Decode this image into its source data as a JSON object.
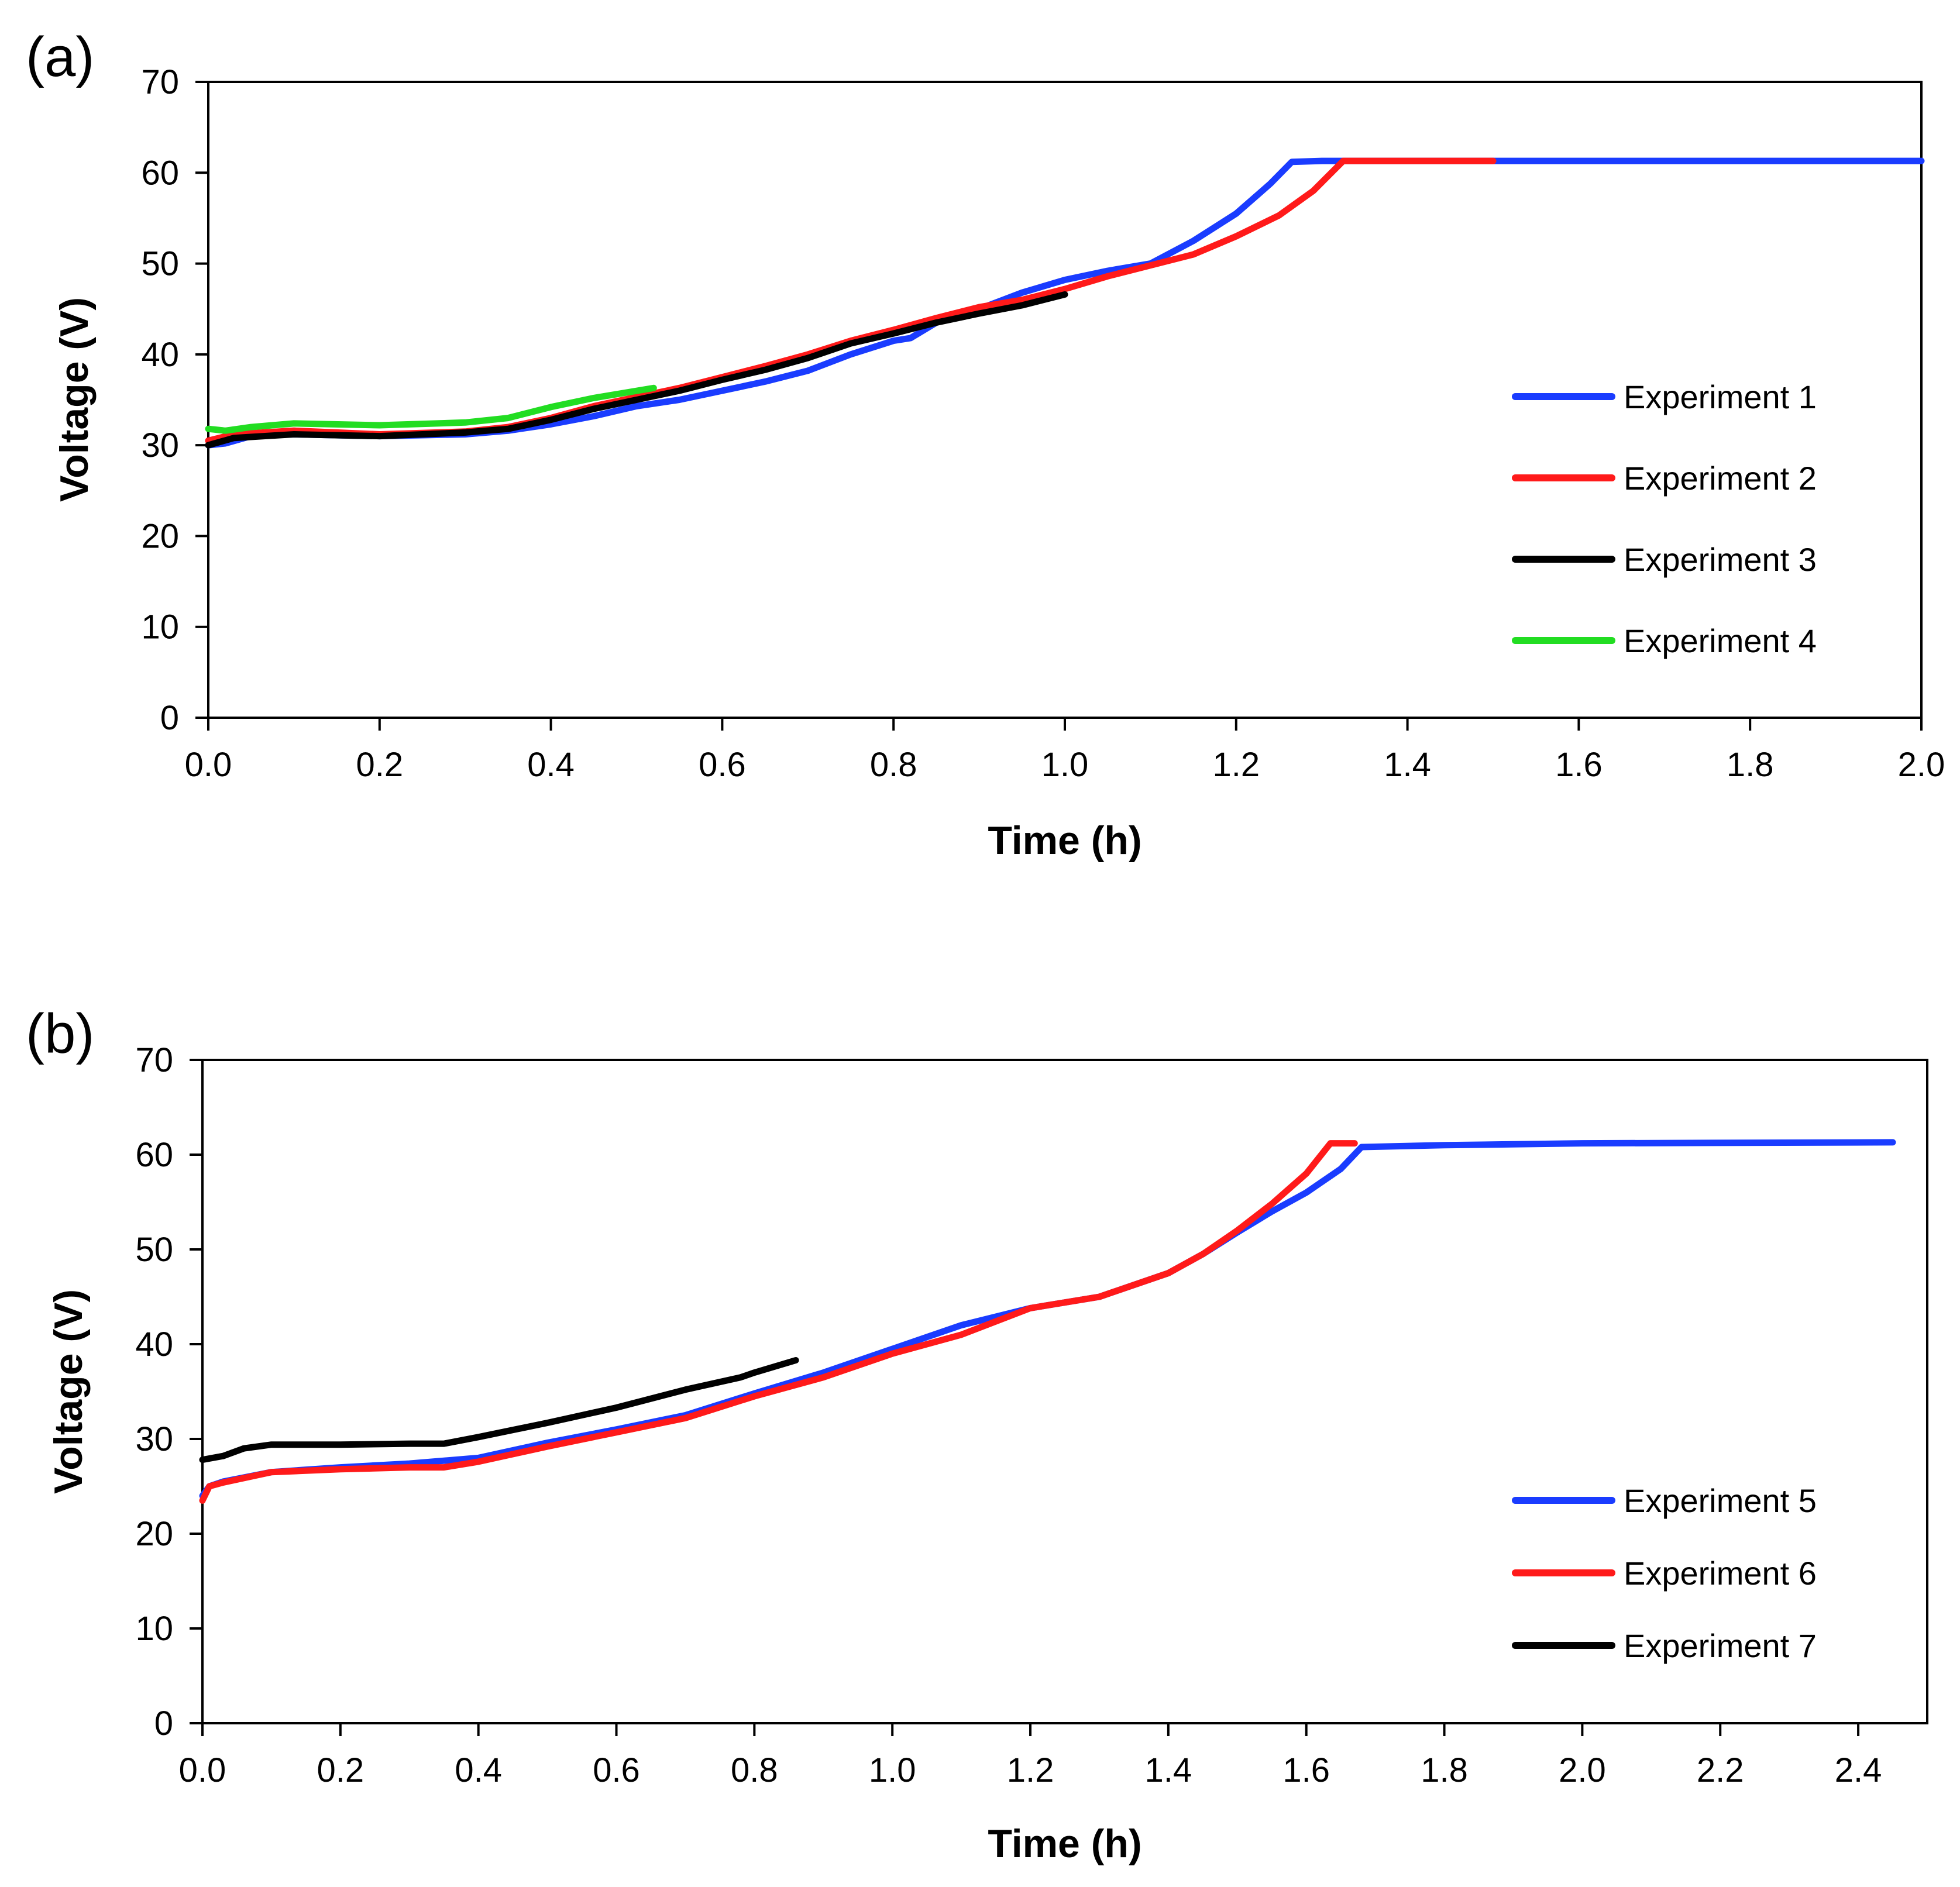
{
  "chart_data": [
    {
      "type": "line",
      "panel_label": "(a)",
      "xlabel": "Time (h)",
      "ylabel": "Voltage (V)",
      "xlim": [
        0,
        2.0
      ],
      "ylim": [
        0,
        70
      ],
      "x_ticks": [
        0.0,
        0.2,
        0.4,
        0.6,
        0.8,
        1.0,
        1.2,
        1.4,
        1.6,
        1.8,
        2.0
      ],
      "x_tick_labels": [
        "0.0",
        "0.2",
        "0.4",
        "0.6",
        "0.8",
        "1.0",
        "1.2",
        "1.4",
        "1.6",
        "1.8",
        "2.0"
      ],
      "y_ticks": [
        0,
        10,
        20,
        30,
        40,
        50,
        60,
        70
      ],
      "y_tick_labels": [
        "0",
        "10",
        "20",
        "30",
        "40",
        "50",
        "60",
        "70"
      ],
      "grid": false,
      "legend_position": "right",
      "series": [
        {
          "name": "Experiment 1",
          "color": "#1a3cff",
          "x": [
            0.0,
            0.02,
            0.05,
            0.1,
            0.2,
            0.3,
            0.35,
            0.4,
            0.45,
            0.5,
            0.55,
            0.6,
            0.65,
            0.7,
            0.75,
            0.8,
            0.82,
            0.85,
            0.9,
            0.95,
            1.0,
            1.05,
            1.1,
            1.15,
            1.2,
            1.24,
            1.265,
            1.3,
            1.5,
            2.0
          ],
          "y": [
            30.0,
            30.2,
            31.0,
            31.2,
            31.0,
            31.2,
            31.6,
            32.3,
            33.2,
            34.3,
            35.0,
            36.0,
            37.0,
            38.2,
            40.0,
            41.5,
            41.8,
            43.5,
            45.0,
            46.8,
            48.2,
            49.2,
            50.0,
            52.5,
            55.5,
            58.8,
            61.2,
            61.3,
            61.3,
            61.3
          ]
        },
        {
          "name": "Experiment 2",
          "color": "#ff1a1a",
          "x": [
            0.0,
            0.03,
            0.1,
            0.2,
            0.3,
            0.35,
            0.4,
            0.45,
            0.5,
            0.55,
            0.6,
            0.65,
            0.7,
            0.75,
            0.8,
            0.85,
            0.9,
            0.95,
            1.0,
            1.05,
            1.1,
            1.15,
            1.2,
            1.25,
            1.29,
            1.325,
            1.5
          ],
          "y": [
            30.5,
            31.2,
            31.6,
            31.2,
            31.5,
            32.0,
            33.0,
            34.3,
            35.3,
            36.3,
            37.5,
            38.7,
            40.0,
            41.5,
            42.7,
            44.0,
            45.2,
            46.0,
            47.2,
            48.6,
            49.8,
            51.0,
            53.0,
            55.3,
            58.0,
            61.3,
            61.3
          ]
        },
        {
          "name": "Experiment 3",
          "color": "#000000",
          "x": [
            0.0,
            0.03,
            0.1,
            0.2,
            0.3,
            0.35,
            0.4,
            0.45,
            0.5,
            0.55,
            0.6,
            0.65,
            0.7,
            0.75,
            0.8,
            0.85,
            0.9,
            0.95,
            1.0
          ],
          "y": [
            30.0,
            30.8,
            31.2,
            31.0,
            31.4,
            31.8,
            32.8,
            34.0,
            35.0,
            36.0,
            37.2,
            38.3,
            39.6,
            41.2,
            42.3,
            43.5,
            44.5,
            45.4,
            46.6
          ]
        },
        {
          "name": "Experiment 4",
          "color": "#22dd22",
          "x": [
            0.0,
            0.02,
            0.05,
            0.1,
            0.2,
            0.3,
            0.35,
            0.4,
            0.45,
            0.52
          ],
          "y": [
            31.8,
            31.6,
            32.0,
            32.4,
            32.2,
            32.5,
            33.0,
            34.2,
            35.2,
            36.3
          ]
        }
      ]
    },
    {
      "type": "line",
      "panel_label": "(b)",
      "xlabel": "Time (h)",
      "ylabel": "Voltage (V)",
      "xlim": [
        0,
        2.5
      ],
      "ylim": [
        0,
        70
      ],
      "x_ticks": [
        0.0,
        0.2,
        0.4,
        0.6,
        0.8,
        1.0,
        1.2,
        1.4,
        1.6,
        1.8,
        2.0,
        2.2,
        2.4
      ],
      "x_tick_labels": [
        "0.0",
        "0.2",
        "0.4",
        "0.6",
        "0.8",
        "1.0",
        "1.2",
        "1.4",
        "1.6",
        "1.8",
        "2.0",
        "2.2",
        "2.4"
      ],
      "y_ticks": [
        0,
        10,
        20,
        30,
        40,
        50,
        60,
        70
      ],
      "y_tick_labels": [
        "0",
        "10",
        "20",
        "30",
        "40",
        "50",
        "60",
        "70"
      ],
      "grid": false,
      "legend_position": "bottom-right",
      "series": [
        {
          "name": "Experiment 5",
          "color": "#1a3cff",
          "x": [
            0.0,
            0.01,
            0.03,
            0.1,
            0.2,
            0.3,
            0.4,
            0.5,
            0.6,
            0.7,
            0.8,
            0.9,
            1.0,
            1.1,
            1.2,
            1.3,
            1.4,
            1.45,
            1.5,
            1.55,
            1.6,
            1.65,
            1.68,
            1.8,
            2.0,
            2.45
          ],
          "y": [
            24.0,
            25.0,
            25.5,
            26.5,
            27.0,
            27.4,
            28.0,
            29.6,
            31.0,
            32.5,
            34.8,
            37.0,
            39.5,
            42.0,
            43.8,
            45.0,
            47.5,
            49.5,
            51.8,
            54.0,
            56.0,
            58.5,
            60.8,
            61.0,
            61.2,
            61.3
          ]
        },
        {
          "name": "Experiment 6",
          "color": "#ff1a1a",
          "x": [
            0.0,
            0.01,
            0.03,
            0.1,
            0.2,
            0.3,
            0.35,
            0.4,
            0.5,
            0.6,
            0.7,
            0.8,
            0.9,
            1.0,
            1.1,
            1.2,
            1.3,
            1.4,
            1.45,
            1.5,
            1.55,
            1.6,
            1.635,
            1.67
          ],
          "y": [
            23.5,
            25.0,
            25.4,
            26.5,
            26.8,
            27.0,
            27.0,
            27.6,
            29.2,
            30.7,
            32.2,
            34.5,
            36.5,
            39.0,
            41.0,
            43.8,
            45.0,
            47.5,
            49.5,
            52.0,
            54.8,
            58.0,
            61.2,
            61.2
          ]
        },
        {
          "name": "Experiment 7",
          "color": "#000000",
          "x": [
            0.0,
            0.03,
            0.06,
            0.1,
            0.2,
            0.3,
            0.35,
            0.4,
            0.5,
            0.6,
            0.7,
            0.78,
            0.8,
            0.86
          ],
          "y": [
            27.8,
            28.2,
            29.0,
            29.4,
            29.4,
            29.5,
            29.5,
            30.2,
            31.7,
            33.3,
            35.2,
            36.5,
            37.0,
            38.3
          ]
        }
      ]
    }
  ]
}
